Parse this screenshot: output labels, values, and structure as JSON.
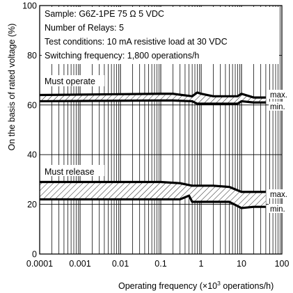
{
  "chart_data": {
    "type": "area",
    "x_scale": "log",
    "xlim": [
      0.0001,
      100
    ],
    "ylim": [
      0,
      100
    ],
    "grid": true,
    "xlabel_main": "Operating frequency (×10",
    "xlabel_exp": "3",
    "xlabel_end": " operations/h)",
    "ylabel": "On the basis of rated voltage (%)",
    "x_tick_labels": [
      "0.0001",
      "0.001",
      "0.01",
      "0.1",
      "1",
      "10",
      "100"
    ],
    "x_tick_values": [
      0.0001,
      0.001,
      0.01,
      0.1,
      1,
      10,
      100
    ],
    "y_tick_labels": [
      "0",
      "20",
      "40",
      "60",
      "80",
      "100"
    ],
    "y_tick_values": [
      0,
      20,
      40,
      60,
      80,
      100
    ],
    "annotations": [
      "Sample: G6Z-1PE  75 Ω  5 VDC",
      "Number of Relays: 5",
      "Test conditions: 10 mA resistive load at  30 VDC",
      "Switching frequency: 1,800 operations/h"
    ],
    "bands": [
      {
        "label": "Must operate",
        "max_label": "max.",
        "min_label": "min.",
        "max": {
          "x": [
            0.0001,
            0.1,
            0.2,
            0.6,
            0.8,
            1,
            2,
            8,
            10,
            20,
            40
          ],
          "y": [
            64,
            64.5,
            64.5,
            63.5,
            65,
            64.5,
            63.5,
            63.5,
            64.5,
            63,
            63
          ]
        },
        "min": {
          "x": [
            0.0001,
            0.1,
            0.2,
            0.6,
            0.8,
            1,
            2,
            8,
            10,
            20,
            40
          ],
          "y": [
            61.5,
            61.8,
            61.8,
            61.5,
            60.5,
            60.5,
            60.5,
            60.5,
            61.5,
            61,
            61
          ]
        }
      },
      {
        "label": "Must release",
        "max_label": "max.",
        "min_label": "min.",
        "max": {
          "x": [
            0.0001,
            0.1,
            0.3,
            0.6,
            2,
            5,
            10,
            20,
            40
          ],
          "y": [
            29,
            29,
            28.5,
            27.5,
            27.5,
            27,
            25,
            25,
            25
          ]
        },
        "min": {
          "x": [
            0.0001,
            0.1,
            0.3,
            0.5,
            0.6,
            2,
            5,
            10,
            20,
            40
          ],
          "y": [
            22,
            22,
            22,
            23.5,
            21,
            21,
            21,
            18.5,
            19,
            19
          ]
        }
      }
    ]
  }
}
